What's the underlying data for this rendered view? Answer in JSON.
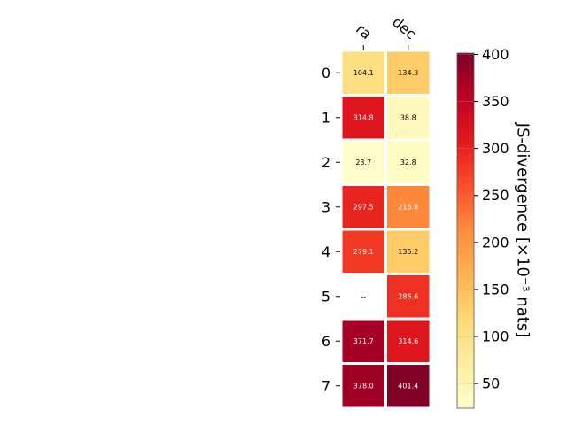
{
  "chart_data": {
    "type": "heatmap",
    "columns": [
      "ra",
      "dec"
    ],
    "rows": [
      "0",
      "1",
      "2",
      "3",
      "4",
      "5",
      "6",
      "7"
    ],
    "values": [
      [
        104.1,
        134.3
      ],
      [
        314.8,
        38.8
      ],
      [
        23.7,
        32.8
      ],
      [
        297.5,
        216.8
      ],
      [
        279.1,
        135.2
      ],
      [
        null,
        286.6
      ],
      [
        371.7,
        314.6
      ],
      [
        378.0,
        401.4
      ]
    ],
    "cell_labels": [
      [
        "104.1",
        "134.3"
      ],
      [
        "314.8",
        "38.8"
      ],
      [
        "23.7",
        "32.8"
      ],
      [
        "297.5",
        "216.8"
      ],
      [
        "279.1",
        "135.2"
      ],
      [
        "--",
        "286.6"
      ],
      [
        "371.7",
        "314.6"
      ],
      [
        "378.0",
        "401.4"
      ]
    ],
    "missing_color": "#ffffff",
    "colormap": "YlOrRd",
    "vmin": 23.7,
    "vmax": 401.4,
    "colorbar": {
      "label": "JS-divergence [×10⁻³ nats]",
      "ticks": [
        50,
        100,
        150,
        200,
        250,
        300,
        350,
        400
      ]
    },
    "grid": false
  }
}
